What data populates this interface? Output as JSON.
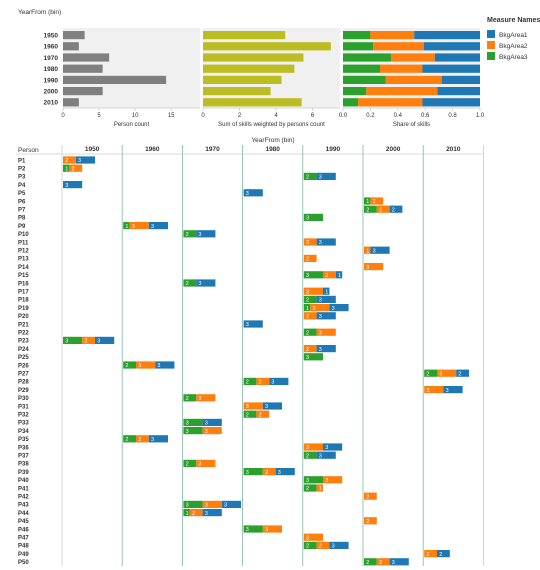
{
  "colors": {
    "b1": "#1f77b4",
    "b2": "#ff7f0e",
    "b3": "#2ca02c",
    "grey": "#7f7f7f",
    "olive": "#bcbd22",
    "panel": "#f0f0f0",
    "gridline": "#7fb7a5",
    "axis": "#cccccc",
    "text": "#333333"
  },
  "legend": {
    "title": "Measure Names",
    "items": [
      {
        "label": "BkgArea1",
        "color": "#1f77b4"
      },
      {
        "label": "BkgArea2",
        "color": "#ff7f0e"
      },
      {
        "label": "BkgArea3",
        "color": "#2ca02c"
      }
    ]
  },
  "chart_data": [
    {
      "type": "bar",
      "orientation": "horizontal",
      "row_header": "YearFrom (bin)",
      "categories": [
        "1950",
        "1960",
        "1970",
        "1980",
        "1990",
        "2000",
        "2010"
      ],
      "panels": [
        {
          "xlabel": "Person count",
          "xlim": [
            0,
            19
          ],
          "ticks": [
            0,
            5,
            10,
            15
          ],
          "values": [
            3,
            2.2,
            6.4,
            5.5,
            14.3,
            5.5,
            2.2
          ],
          "color": "#7f7f7f"
        },
        {
          "xlabel": "Sum of skills weighted by persons count",
          "xlim": [
            0,
            7.5
          ],
          "ticks": [
            0,
            2,
            4,
            6
          ],
          "values": [
            4.5,
            7.0,
            5.5,
            5.0,
            4.3,
            3.7,
            5.4
          ],
          "color": "#bcbd22"
        },
        {
          "xlabel": "Share of skills",
          "xlim": [
            0,
            1
          ],
          "ticks": [
            0.0,
            0.2,
            0.4,
            0.6,
            0.8,
            1.0
          ],
          "tick_labels": [
            "0.0",
            "0.2",
            "0.4",
            "0.6",
            "0.8",
            "1.0"
          ],
          "stacked": true,
          "series": [
            {
              "name": "BkgArea3",
              "values": [
                0.2,
                0.22,
                0.35,
                0.27,
                0.31,
                0.17,
                0.11
              ]
            },
            {
              "name": "BkgArea2",
              "values": [
                0.32,
                0.37,
                0.32,
                0.31,
                0.41,
                0.52,
                0.47
              ]
            },
            {
              "name": "BkgArea1",
              "values": [
                0.48,
                0.41,
                0.33,
                0.42,
                0.28,
                0.31,
                0.42
              ]
            }
          ]
        }
      ]
    },
    {
      "type": "bar",
      "stacked": true,
      "column_header": "YearFrom (bin)",
      "row_header": "Person",
      "columns": [
        "1950",
        "1960",
        "1970",
        "1980",
        "1990",
        "2000",
        "2010"
      ],
      "series_names": [
        "BkgArea3",
        "BkgArea2",
        "BkgArea1"
      ],
      "rows": [
        {
          "person": "P1",
          "col": 0,
          "segments": [
            0,
            2,
            3
          ]
        },
        {
          "person": "P2",
          "col": 0,
          "segments": [
            1,
            2,
            0
          ]
        },
        {
          "person": "P3",
          "col": 4,
          "segments": [
            2,
            0,
            3
          ]
        },
        {
          "person": "P4",
          "col": 0,
          "segments": [
            0,
            0,
            3
          ]
        },
        {
          "person": "P5",
          "col": 3,
          "segments": [
            0,
            0,
            3
          ]
        },
        {
          "person": "P6",
          "col": 5,
          "segments": [
            1,
            2,
            0
          ]
        },
        {
          "person": "P7",
          "col": 5,
          "segments": [
            2,
            2,
            2
          ]
        },
        {
          "person": "P8",
          "col": 4,
          "segments": [
            3,
            0,
            0
          ]
        },
        {
          "person": "P9",
          "col": 1,
          "segments": [
            1,
            3,
            3
          ]
        },
        {
          "person": "P10",
          "col": 2,
          "segments": [
            2,
            0,
            3
          ]
        },
        {
          "person": "P11",
          "col": 4,
          "segments": [
            0,
            2,
            3
          ]
        },
        {
          "person": "P12",
          "col": 5,
          "segments": [
            0,
            1,
            3
          ]
        },
        {
          "person": "P13",
          "col": 4,
          "segments": [
            0,
            2,
            0
          ]
        },
        {
          "person": "P14",
          "col": 5,
          "segments": [
            0,
            3,
            0
          ]
        },
        {
          "person": "P15",
          "col": 4,
          "segments": [
            3,
            2,
            1
          ]
        },
        {
          "person": "P16",
          "col": 2,
          "segments": [
            2,
            0,
            3
          ]
        },
        {
          "person": "P17",
          "col": 4,
          "segments": [
            0,
            3,
            1
          ]
        },
        {
          "person": "P18",
          "col": 4,
          "segments": [
            2,
            0,
            3
          ]
        },
        {
          "person": "P19",
          "col": 4,
          "segments": [
            1,
            3,
            3
          ]
        },
        {
          "person": "P20",
          "col": 4,
          "segments": [
            0,
            2,
            3
          ]
        },
        {
          "person": "P21",
          "col": 3,
          "segments": [
            0,
            0,
            3
          ]
        },
        {
          "person": "P22",
          "col": 4,
          "segments": [
            2,
            3,
            0
          ]
        },
        {
          "person": "P23",
          "col": 0,
          "segments": [
            3,
            2,
            3
          ]
        },
        {
          "person": "P24",
          "col": 4,
          "segments": [
            0,
            2,
            3
          ]
        },
        {
          "person": "P25",
          "col": 4,
          "segments": [
            3,
            0,
            0
          ]
        },
        {
          "person": "P26",
          "col": 1,
          "segments": [
            2,
            3,
            3
          ]
        },
        {
          "person": "P27",
          "col": 6,
          "segments": [
            2,
            3,
            2
          ]
        },
        {
          "person": "P28",
          "col": 3,
          "segments": [
            2,
            2,
            3
          ]
        },
        {
          "person": "P29",
          "col": 6,
          "segments": [
            0,
            3,
            3
          ]
        },
        {
          "person": "P30",
          "col": 2,
          "segments": [
            2,
            3,
            0
          ]
        },
        {
          "person": "P31",
          "col": 3,
          "segments": [
            0,
            3,
            3
          ]
        },
        {
          "person": "P32",
          "col": 3,
          "segments": [
            2,
            2,
            0
          ]
        },
        {
          "person": "P33",
          "col": 2,
          "segments": [
            3,
            0,
            3
          ]
        },
        {
          "person": "P34",
          "col": 2,
          "segments": [
            3,
            3,
            0
          ]
        },
        {
          "person": "P35",
          "col": 1,
          "segments": [
            2,
            2,
            3
          ]
        },
        {
          "person": "P36",
          "col": 4,
          "segments": [
            0,
            3,
            3
          ]
        },
        {
          "person": "P37",
          "col": 4,
          "segments": [
            2,
            0,
            3
          ]
        },
        {
          "person": "P38",
          "col": 2,
          "segments": [
            2,
            3,
            0
          ]
        },
        {
          "person": "P39",
          "col": 3,
          "segments": [
            3,
            2,
            3
          ]
        },
        {
          "person": "P40",
          "col": 4,
          "segments": [
            3,
            3,
            0
          ]
        },
        {
          "person": "P41",
          "col": 4,
          "segments": [
            2,
            1,
            0
          ]
        },
        {
          "person": "P42",
          "col": 5,
          "segments": [
            0,
            2,
            0
          ]
        },
        {
          "person": "P43",
          "col": 2,
          "segments": [
            3,
            3,
            3
          ]
        },
        {
          "person": "P44",
          "col": 2,
          "segments": [
            1,
            2,
            3
          ]
        },
        {
          "person": "P45",
          "col": 5,
          "segments": [
            0,
            2,
            0
          ]
        },
        {
          "person": "P46",
          "col": 3,
          "segments": [
            3,
            3,
            0
          ]
        },
        {
          "person": "P47",
          "col": 4,
          "segments": [
            0,
            3,
            0
          ]
        },
        {
          "person": "P48",
          "col": 4,
          "segments": [
            2,
            2,
            3
          ]
        },
        {
          "person": "P49",
          "col": 6,
          "segments": [
            0,
            2,
            2
          ]
        },
        {
          "person": "P50",
          "col": 5,
          "segments": [
            2,
            2,
            3
          ]
        }
      ]
    }
  ]
}
